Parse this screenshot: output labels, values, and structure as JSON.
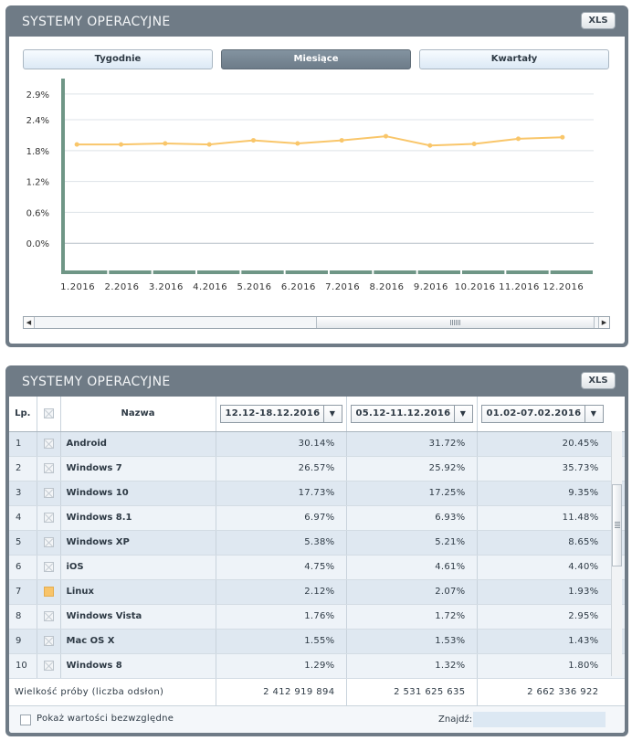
{
  "chart_panel": {
    "title": "SYSTEMY OPERACYJNE",
    "xls_label": "XLS",
    "tabs": [
      {
        "label": "Tygodnie",
        "active": false
      },
      {
        "label": "Miesiące",
        "active": true
      },
      {
        "label": "Kwartały",
        "active": false
      }
    ]
  },
  "chart_data": {
    "type": "line",
    "title": "",
    "xlabel": "",
    "ylabel": "",
    "categories": [
      "1.2016",
      "2.2016",
      "3.2016",
      "4.2016",
      "5.2016",
      "6.2016",
      "7.2016",
      "8.2016",
      "9.2016",
      "10.2016",
      "11.2016",
      "12.2016"
    ],
    "y_ticks": [
      "0.0%",
      "0.6%",
      "1.2%",
      "1.8%",
      "2.4%",
      "2.9%"
    ],
    "ylim": [
      -0.6,
      3.2
    ],
    "grid": true,
    "series": [
      {
        "values": [
          1.92,
          1.92,
          1.94,
          1.92,
          2.0,
          1.94,
          2.0,
          2.08,
          1.9,
          1.93,
          2.03,
          2.06
        ],
        "color": "#f9c66a"
      }
    ],
    "bar_color": "#6f9686"
  },
  "table_panel": {
    "title": "SYSTEMY OPERACYJNE",
    "xls_label": "XLS",
    "headers": {
      "lp": "Lp.",
      "name": "Nazwa",
      "periods": [
        "12.12-18.12.2016",
        "05.12-11.12.2016",
        "01.02-07.02.2016"
      ]
    },
    "rows": [
      {
        "lp": "1",
        "name": "Android",
        "v": [
          "30.14%",
          "31.72%",
          "20.45%"
        ],
        "checked": false
      },
      {
        "lp": "2",
        "name": "Windows 7",
        "v": [
          "26.57%",
          "25.92%",
          "35.73%"
        ],
        "checked": false
      },
      {
        "lp": "3",
        "name": "Windows 10",
        "v": [
          "17.73%",
          "17.25%",
          "9.35%"
        ],
        "checked": false
      },
      {
        "lp": "4",
        "name": "Windows 8.1",
        "v": [
          "6.97%",
          "6.93%",
          "11.48%"
        ],
        "checked": false
      },
      {
        "lp": "5",
        "name": "Windows XP",
        "v": [
          "5.38%",
          "5.21%",
          "8.65%"
        ],
        "checked": false
      },
      {
        "lp": "6",
        "name": "iOS",
        "v": [
          "4.75%",
          "4.61%",
          "4.40%"
        ],
        "checked": false
      },
      {
        "lp": "7",
        "name": "Linux",
        "v": [
          "2.12%",
          "2.07%",
          "1.93%"
        ],
        "checked": true
      },
      {
        "lp": "8",
        "name": "Windows Vista",
        "v": [
          "1.76%",
          "1.72%",
          "2.95%"
        ],
        "checked": false
      },
      {
        "lp": "9",
        "name": "Mac OS X",
        "v": [
          "1.55%",
          "1.53%",
          "1.43%"
        ],
        "checked": false
      },
      {
        "lp": "10",
        "name": "Windows 8",
        "v": [
          "1.29%",
          "1.32%",
          "1.80%"
        ],
        "checked": false
      }
    ],
    "sample": {
      "label": "Wielkość próby (liczba odsłon)",
      "values": [
        "2 412 919 894",
        "2 531 625 635",
        "2 662 336 922"
      ]
    },
    "footer": {
      "absolute_label": "Pokaż wartości bezwzględne",
      "find_label": "Znajdź:",
      "find_value": ""
    }
  }
}
